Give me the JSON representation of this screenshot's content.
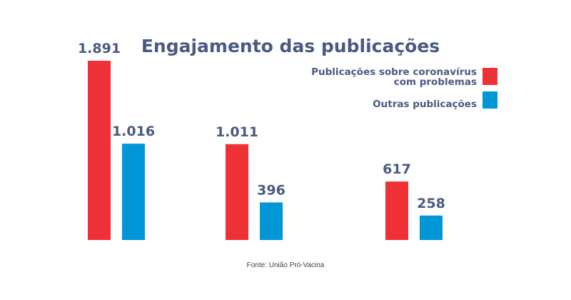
{
  "chart_data": {
    "type": "bar",
    "title": "Engajamento das publicações",
    "categories": [
      "",
      "",
      ""
    ],
    "series": [
      {
        "name": "Publicações sobre coronavírus com problemas",
        "legend_lines": [
          "Publicações sobre coronavírus",
          "com problemas"
        ],
        "color": "#ee3137",
        "values": [
          1891,
          1011,
          617
        ],
        "labels": [
          "1.891",
          "1.011",
          "617"
        ]
      },
      {
        "name": "Outras publicações",
        "legend_lines": [
          "Outras publicações"
        ],
        "color": "#0096d8",
        "values": [
          1016,
          396,
          258
        ],
        "labels": [
          "1.016",
          "396",
          "258"
        ]
      }
    ],
    "ylim": [
      0,
      1891
    ],
    "xlabel": "",
    "ylabel": "",
    "grid": false,
    "legend_position": "top-right",
    "source": "Fonte: União Pró-Vacina"
  }
}
